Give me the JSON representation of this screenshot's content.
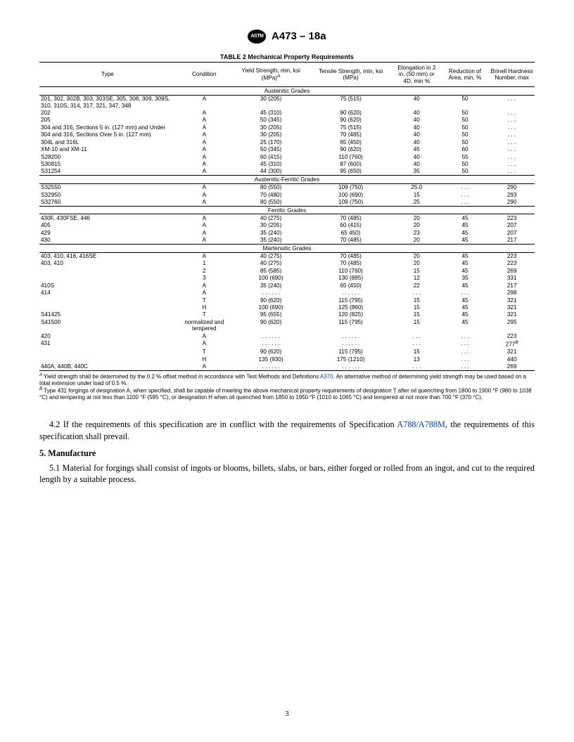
{
  "doc": {
    "designation": "A473 – 18a",
    "table_title": "TABLE 2 Mechanical Property Requirements",
    "page_number": "3"
  },
  "columns": {
    "type": "Type",
    "condition": "Condition",
    "yield": "Yield Strength, min, ksi (MPa)",
    "yield_sup": "A",
    "tensile": "Tensile Strength, min, ksi (MPa)",
    "elong": "Elongation in 2 in. (50 mm) or 4D, min %",
    "roa": "Reduction of Area, min, %",
    "bhn": "Brinell Hardness Number, max"
  },
  "sections": [
    {
      "name": "Austenitic Grades",
      "rows": [
        {
          "type": "201, 302, 302B, 303, 303SE, 305, 308, 309, 309S, 310, 310S, 314, 317, 321, 347, 348",
          "cond": "A",
          "ys": "30 (205)",
          "ts": "75 (515)",
          "el": "40",
          "roa": "50",
          "bhn": ". . ."
        },
        {
          "type": "202",
          "cond": "A",
          "ys": "45 (310)",
          "ts": "90 (620)",
          "el": "40",
          "roa": "50",
          "bhn": ". . ."
        },
        {
          "type": "205",
          "cond": "A",
          "ys": "50 (345)",
          "ts": "90 (620)",
          "el": "40",
          "roa": "50",
          "bhn": ". . ."
        },
        {
          "type": "304 and 316, Sections 5 in. (127 mm) and Under",
          "cond": "A",
          "ys": "30 (205)",
          "ts": "75 (515)",
          "el": "40",
          "roa": "50",
          "bhn": ". . ."
        },
        {
          "type": "304 and 316, Sections Over 5 in. (127 mm)",
          "cond": "A",
          "ys": "30 (205)",
          "ts": "70 (485)",
          "el": "40",
          "roa": "50",
          "bhn": ". . ."
        },
        {
          "type": "304L and 316L",
          "cond": "A",
          "ys": "25 (170)",
          "ts": "65 (450)",
          "el": "40",
          "roa": "50",
          "bhn": ". . ."
        },
        {
          "type": "XM-10 and XM-11",
          "cond": "A",
          "ys": "50 (345)",
          "ts": "90 (620)",
          "el": "45",
          "roa": "60",
          "bhn": ". . ."
        },
        {
          "type": "S28200",
          "cond": "A",
          "ys": "60 (415)",
          "ts": "110 (760)",
          "el": "40",
          "roa": "55",
          "bhn": ". . ."
        },
        {
          "type": "S30815",
          "cond": "A",
          "ys": "45 (310)",
          "ts": "87 (600)",
          "el": "40",
          "roa": "50",
          "bhn": ". . ."
        },
        {
          "type": "S31254",
          "cond": "A",
          "ys": "44 (300)",
          "ts": "95 (650)",
          "el": "35",
          "roa": "50",
          "bhn": ". . ."
        }
      ]
    },
    {
      "name": "Austenitic-Ferritic Grades",
      "rows": [
        {
          "type": "S32550",
          "cond": "A",
          "ys": "80 (550)",
          "ts": "109 (750)",
          "el": "25.0",
          "roa": ". . .",
          "bhn": "290"
        },
        {
          "type": "S32950",
          "cond": "A",
          "ys": "70 (480)",
          "ts": "100 (690)",
          "el": "15",
          "roa": ". . .",
          "bhn": "293"
        },
        {
          "type": "S32760",
          "cond": "A",
          "ys": "80 (550)",
          "ts": "109 (750)",
          "el": "25",
          "roa": ". . .",
          "bhn": "290"
        }
      ]
    },
    {
      "name": "Ferritic Grades",
      "rows": [
        {
          "type": "430F, 430FSE, 446",
          "cond": "A",
          "ys": "40 (275)",
          "ts": "70 (485)",
          "el": "20",
          "roa": "45",
          "bhn": "223"
        },
        {
          "type": "405",
          "cond": "A",
          "ys": "30 (205)",
          "ts": "60 (415)",
          "el": "20",
          "roa": "45",
          "bhn": "207"
        },
        {
          "type": "429",
          "cond": "A",
          "ys": "35 (240)",
          "ts": "65 450)",
          "el": "23",
          "roa": "45",
          "bhn": "207"
        },
        {
          "type": "430",
          "cond": "A",
          "ys": "35 (240)",
          "ts": "70 (485)",
          "el": "20",
          "roa": "45",
          "bhn": "217"
        }
      ]
    },
    {
      "name": "Martensitic Grades",
      "rows": [
        {
          "type": "403, 410, 416, 416SE",
          "cond": "A",
          "ys": "40 (275)",
          "ts": "70 (485)",
          "el": "20",
          "roa": "45",
          "bhn": "223"
        },
        {
          "type": "403, 410",
          "cond": "1",
          "ys": "40 (275)",
          "ts": "70 (485)",
          "el": "20",
          "roa": "45",
          "bhn": "223"
        },
        {
          "type": "",
          "cond": "2",
          "ys": "85 (585)",
          "ts": "110 (760)",
          "el": "15",
          "roa": "45",
          "bhn": "269"
        },
        {
          "type": "",
          "cond": "3",
          "ys": "100 (690)",
          "ts": "130 (895)",
          "el": "12",
          "roa": "35",
          "bhn": "331"
        },
        {
          "type": "410S",
          "cond": "A",
          "ys": "35 (240)",
          "ts": "65 (450)",
          "el": "22",
          "roa": "45",
          "bhn": "217"
        },
        {
          "type": "414",
          "cond": "A",
          "ys": ". . .    . . .",
          "ts": ". . .    . . .",
          "el": ". . .",
          "roa": ". . .",
          "bhn": "298"
        },
        {
          "type": "",
          "cond": "T",
          "ys": "90 (620)",
          "ts": "115 (795)",
          "el": "15",
          "roa": "45",
          "bhn": "321"
        },
        {
          "type": "",
          "cond": "H",
          "ys": "100 (690)",
          "ts": "125 (860)",
          "el": "15",
          "roa": "45",
          "bhn": "321"
        },
        {
          "type": "S41425",
          "cond": "T",
          "ys": "95 (655)",
          "ts": "120 (825)",
          "el": "15",
          "roa": "45",
          "bhn": "321"
        },
        {
          "type": "S41500",
          "cond": "normalized and tempered",
          "ys": "90 (620)",
          "ts": "115 (795)",
          "el": "15",
          "roa": "45",
          "bhn": "295"
        },
        {
          "type": "420",
          "cond": "A",
          "ys": ". . .    . . .",
          "ts": ". . .    . . .",
          "el": ". . .",
          "roa": ". . .",
          "bhn": "223"
        },
        {
          "type": "431",
          "cond": "A",
          "ys": ". . .    . . .",
          "ts": ". . .    . . .",
          "el": ". . .",
          "roa": ". . .",
          "bhn": "277",
          "bhn_sup": "B"
        },
        {
          "type": "",
          "cond": "T",
          "ys": "90 (620)",
          "ts": "115 (795)",
          "el": "15",
          "roa": ". . .",
          "bhn": "321"
        },
        {
          "type": "",
          "cond": "H",
          "ys": "135 (930)",
          "ts": "175 (1210)",
          "el": "13",
          "roa": ". . .",
          "bhn": "440"
        },
        {
          "type": "440A, 440B, 440C",
          "cond": "A",
          "ys": ". . .    . . .",
          "ts": ". . .    . . .",
          "el": ". . .",
          "roa": ". . .",
          "bhn": "269"
        }
      ]
    }
  ],
  "footnotes": {
    "A_pre": "Yield strength shall be determined by the 0.2 % offset method in accordance with Test Methods and Definitions ",
    "A_link": "A370",
    "A_post": ". An alternative method of determining yield strength may be used based on a total extension under load of 0.5 %.",
    "B": "Type 431 forgings of designation A, when specified, shall be capable of meeting the above mechanical property requirements of designation T after oil quenching from 1800 to 1900 °F (980 to 1038 °C) and tempering at not less than 1100 °F (595 °C), or designation H when oil quenched from 1850 to 1950 °F (1010 to 1065 °C) and tempered at not more than 700 °F (370 °C)."
  },
  "body": {
    "p42_pre": "4.2 If the requirements of this specification are in conflict with the requirements of Specification ",
    "p42_link": "A788/A788M",
    "p42_post": ", the requirements of this specification shall prevail.",
    "h5": "5. Manufacture",
    "p51": "5.1  Material for forgings shall consist of ingots or blooms, billets, slabs, or bars, either forged or rolled from an ingot, and cut to the required length by a suitable process."
  }
}
